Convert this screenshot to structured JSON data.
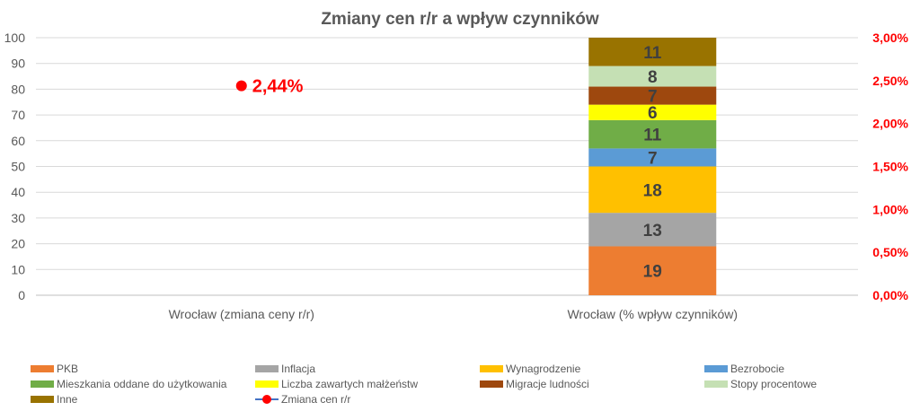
{
  "chart_data": {
    "type": "bar",
    "title": "Zmiany cen r/r a wpływ czynników",
    "categories": [
      "Wrocław (zmiana ceny r/r)",
      "Wrocław (% wpływ czynników)"
    ],
    "y_ticks": [
      "0",
      "10",
      "20",
      "30",
      "40",
      "50",
      "60",
      "70",
      "80",
      "90",
      "100"
    ],
    "ylim": [
      0,
      100
    ],
    "y2_ticks": [
      "0,00%",
      "0,50%",
      "1,00%",
      "1,50%",
      "2,00%",
      "2,50%",
      "3,00%"
    ],
    "y2lim": [
      0,
      3
    ],
    "series": [
      {
        "name": "PKB",
        "color": "#ed7d31",
        "values": [
          0,
          19
        ],
        "label": "19"
      },
      {
        "name": "Inflacja",
        "color": "#a5a5a5",
        "values": [
          0,
          13
        ],
        "label": "13"
      },
      {
        "name": "Wynagrodzenie",
        "color": "#ffc000",
        "values": [
          0,
          18
        ],
        "label": "18"
      },
      {
        "name": "Bezrobocie",
        "color": "#5b9bd5",
        "values": [
          0,
          7
        ],
        "label": "7"
      },
      {
        "name": "Mieszkania oddane do użytkowania",
        "color": "#70ad47",
        "values": [
          0,
          11
        ],
        "label": "11"
      },
      {
        "name": "Liczba zawartych małżeństw",
        "color": "#ffff00",
        "values": [
          0,
          6
        ],
        "label": "6"
      },
      {
        "name": "Migracje ludności",
        "color": "#9e480e",
        "values": [
          0,
          7
        ],
        "label": "7"
      },
      {
        "name": "Stopy procentowe",
        "color": "#c5e0b4",
        "values": [
          0,
          8
        ],
        "label": "8"
      },
      {
        "name": "Inne",
        "color": "#997300",
        "values": [
          0,
          11
        ],
        "label": "11"
      }
    ],
    "line_series": {
      "name": "Zmiana cen r/r",
      "color": "#ff0000",
      "line_color": "#4472c4",
      "category_index": 0,
      "value": 2.44,
      "label": "2,44%"
    }
  }
}
